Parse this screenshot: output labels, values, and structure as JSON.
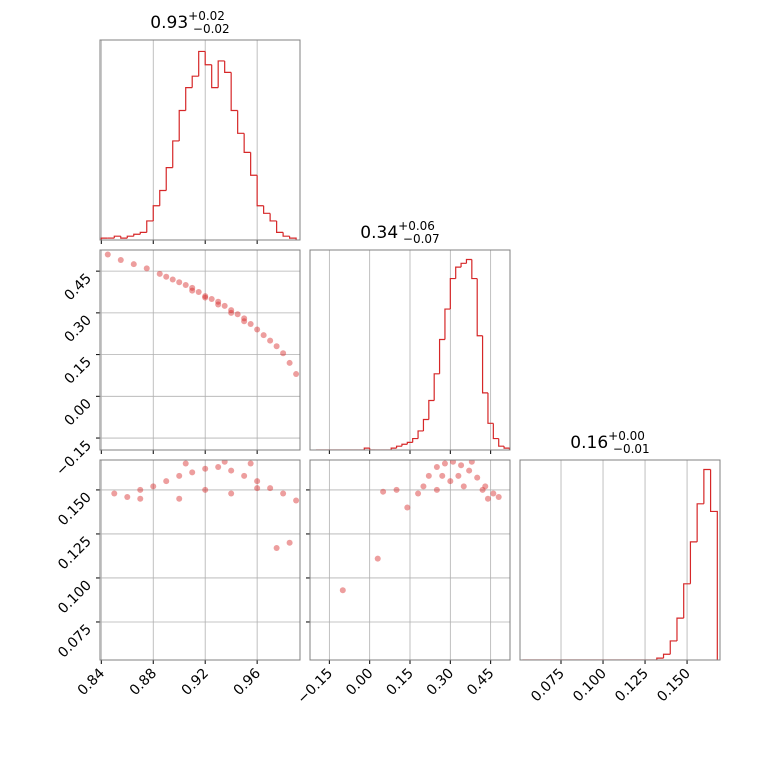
{
  "chart_data": [
    {
      "type": "histogram",
      "title": {
        "value": "0.93",
        "upper": "+0.02",
        "lower": "−0.02"
      },
      "color": "#d62728",
      "grid": true,
      "bins": [
        0.84,
        0.845,
        0.85,
        0.855,
        0.86,
        0.865,
        0.87,
        0.875,
        0.88,
        0.885,
        0.89,
        0.895,
        0.9,
        0.905,
        0.91,
        0.915,
        0.92,
        0.925,
        0.93,
        0.935,
        0.94,
        0.945,
        0.95,
        0.955,
        0.96,
        0.965,
        0.97,
        0.975,
        0.98,
        0.985,
        0.99
      ],
      "values": [
        1,
        1,
        2,
        1,
        2,
        3,
        4,
        10,
        18,
        26,
        38,
        52,
        68,
        80,
        86,
        99,
        92,
        80,
        94,
        88,
        68,
        56,
        46,
        34,
        18,
        14,
        10,
        4,
        2,
        1
      ],
      "xlim": [
        0.839,
        0.993
      ],
      "ylim": [
        0,
        105
      ],
      "xticks": [
        0.84,
        0.88,
        0.92,
        0.96
      ]
    },
    {
      "type": "scatter",
      "color": "#d62728",
      "grid": true,
      "x": [
        0.845,
        0.855,
        0.865,
        0.875,
        0.885,
        0.89,
        0.895,
        0.9,
        0.905,
        0.91,
        0.915,
        0.92,
        0.925,
        0.93,
        0.935,
        0.94,
        0.945,
        0.95,
        0.955,
        0.96,
        0.965,
        0.97,
        0.975,
        0.98,
        0.985,
        0.99,
        0.91,
        0.92,
        0.93,
        0.94,
        0.95
      ],
      "y": [
        0.51,
        0.49,
        0.475,
        0.46,
        0.44,
        0.43,
        0.42,
        0.41,
        0.4,
        0.39,
        0.375,
        0.36,
        0.35,
        0.34,
        0.325,
        0.31,
        0.295,
        0.28,
        0.26,
        0.24,
        0.22,
        0.2,
        0.18,
        0.155,
        0.12,
        0.08,
        0.38,
        0.355,
        0.33,
        0.3,
        0.27
      ],
      "xlim": [
        0.839,
        0.993
      ],
      "ylim": [
        -0.193,
        0.526
      ],
      "xticks": [
        0.84,
        0.88,
        0.92,
        0.96
      ],
      "yticks": [
        {
          "value": -0.15,
          "label": "−0.15"
        },
        {
          "value": 0,
          "label": "0.00"
        },
        0.15,
        {
          "value": 0.3,
          "label": "0.30"
        },
        0.45
      ]
    },
    {
      "type": "histogram",
      "title": {
        "value": "0.34",
        "upper": "+0.06",
        "lower": "−0.07"
      },
      "color": "#d62728",
      "grid": true,
      "bins": [
        -0.2,
        -0.18,
        -0.16,
        -0.14,
        -0.12,
        -0.1,
        -0.08,
        -0.06,
        -0.04,
        -0.02,
        0.0,
        0.02,
        0.04,
        0.06,
        0.08,
        0.1,
        0.12,
        0.14,
        0.16,
        0.18,
        0.2,
        0.22,
        0.24,
        0.26,
        0.28,
        0.3,
        0.32,
        0.34,
        0.36,
        0.38,
        0.4,
        0.42,
        0.44,
        0.46,
        0.48,
        0.5,
        0.52
      ],
      "values": [
        0,
        0,
        0,
        0,
        0,
        0,
        0,
        0,
        0,
        1,
        0,
        0,
        0,
        0,
        1,
        2,
        3,
        4,
        6,
        10,
        16,
        26,
        40,
        58,
        74,
        90,
        96,
        98,
        100,
        90,
        60,
        30,
        14,
        6,
        2,
        1
      ],
      "xlim": [
        -0.222,
        0.522
      ],
      "ylim": [
        0,
        105
      ],
      "xticks": [
        {
          "value": -0.15,
          "label": "−0.15"
        },
        {
          "value": 0,
          "label": "0.00"
        },
        0.15,
        {
          "value": 0.3,
          "label": "0.30"
        },
        0.45
      ]
    },
    {
      "type": "scatter",
      "color": "#d62728",
      "grid": true,
      "x": [
        0.85,
        0.86,
        0.87,
        0.88,
        0.89,
        0.9,
        0.91,
        0.92,
        0.93,
        0.94,
        0.95,
        0.96,
        0.97,
        0.98,
        0.99,
        0.975,
        0.985,
        0.9,
        0.92,
        0.94,
        0.905,
        0.935,
        0.955,
        0.87,
        0.96
      ],
      "y": [
        0.148,
        0.146,
        0.15,
        0.152,
        0.155,
        0.158,
        0.16,
        0.162,
        0.163,
        0.161,
        0.158,
        0.155,
        0.151,
        0.148,
        0.144,
        0.117,
        0.12,
        0.145,
        0.15,
        0.148,
        0.165,
        0.166,
        0.165,
        0.145,
        0.151
      ],
      "xlim": [
        0.839,
        0.993
      ],
      "ylim": [
        0.0534,
        0.167
      ],
      "xticks": [
        0.84,
        0.88,
        0.92,
        0.96
      ],
      "yticks": [
        0.075,
        {
          "value": 0.1,
          "label": "0.100"
        },
        0.125,
        {
          "value": 0.15,
          "label": "0.150"
        }
      ]
    },
    {
      "type": "scatter",
      "color": "#d62728",
      "grid": true,
      "x": [
        0.2,
        0.22,
        0.25,
        0.28,
        0.31,
        0.34,
        0.37,
        0.4,
        0.43,
        0.46,
        0.48,
        0.3,
        0.35,
        0.25,
        0.42,
        0.18,
        0.1,
        0.05,
        0.14,
        0.03,
        -0.1,
        0.38,
        0.27,
        0.33,
        0.44
      ],
      "y": [
        0.152,
        0.158,
        0.163,
        0.165,
        0.166,
        0.164,
        0.161,
        0.157,
        0.152,
        0.148,
        0.146,
        0.155,
        0.152,
        0.15,
        0.15,
        0.148,
        0.15,
        0.149,
        0.14,
        0.111,
        0.093,
        0.166,
        0.158,
        0.158,
        0.145
      ],
      "xlim": [
        -0.222,
        0.522
      ],
      "ylim": [
        0.0534,
        0.167
      ],
      "xticks": [
        {
          "value": -0.15,
          "label": "−0.15"
        },
        {
          "value": 0,
          "label": "0.00"
        },
        0.15,
        {
          "value": 0.3,
          "label": "0.30"
        },
        0.45
      ],
      "yticks": [
        0.075,
        {
          "value": 0.1,
          "label": "0.100"
        },
        0.125,
        {
          "value": 0.15,
          "label": "0.150"
        }
      ]
    },
    {
      "type": "histogram",
      "title": {
        "value": "0.16",
        "upper": "+0.00",
        "lower": "−0.01"
      },
      "color": "#d62728",
      "grid": true,
      "bins": [
        0.052,
        0.056,
        0.06,
        0.064,
        0.068,
        0.072,
        0.076,
        0.08,
        0.084,
        0.088,
        0.092,
        0.096,
        0.1,
        0.104,
        0.108,
        0.112,
        0.116,
        0.12,
        0.124,
        0.128,
        0.132,
        0.136,
        0.14,
        0.144,
        0.148,
        0.152,
        0.156,
        0.16,
        0.164,
        0.168
      ],
      "values": [
        0,
        0,
        0,
        0,
        0,
        0,
        0,
        0,
        0,
        0,
        0,
        0,
        0,
        0,
        0,
        0,
        0,
        0,
        0,
        0,
        1,
        3,
        10,
        22,
        40,
        62,
        82,
        100,
        78
      ],
      "xlim": [
        0.0506,
        0.1696
      ],
      "ylim": [
        0,
        105
      ],
      "xticks": [
        0.075,
        {
          "value": 0.1,
          "label": "0.100"
        },
        0.125,
        {
          "value": 0.15,
          "label": "0.150"
        }
      ]
    }
  ]
}
